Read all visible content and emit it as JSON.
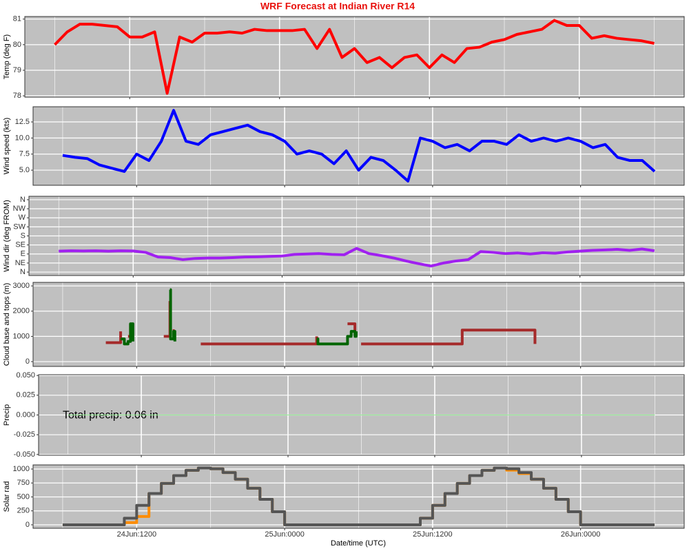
{
  "chart_data": {
    "type": "multi",
    "title": "WRF Forecast at Indian River R14",
    "xlabel": "Date/time (UTC)",
    "xlim": [
      3.6,
      56.4
    ],
    "xticks": [
      {
        "value": 12,
        "label": "24Jun:1200"
      },
      {
        "value": 24,
        "label": "25Jun:0000"
      },
      {
        "value": 36,
        "label": "25Jun:1200"
      },
      {
        "value": 48,
        "label": "26Jun:0000"
      }
    ],
    "xminor": [
      6,
      18,
      30,
      42,
      54
    ],
    "panels": [
      {
        "type": "line",
        "ylabel": "Temp (deg F)",
        "ylim": [
          77.95,
          81.1
        ],
        "yticks": [
          78,
          79,
          80,
          81
        ],
        "x": [
          6,
          7,
          8,
          9,
          10,
          11,
          12,
          13,
          14,
          15,
          16,
          17,
          18,
          19,
          20,
          21,
          22,
          23,
          24,
          25,
          26,
          27,
          28,
          29,
          30,
          31,
          32,
          33,
          34,
          35,
          36,
          37,
          38,
          39,
          40,
          41,
          42,
          43,
          44,
          45,
          46,
          47,
          48,
          49,
          50,
          51,
          52,
          53,
          54
        ],
        "series": [
          {
            "color": "#ff0000",
            "values": [
              80.0,
              80.5,
              80.8,
              80.8,
              80.75,
              80.7,
              80.3,
              80.3,
              80.5,
              78.1,
              80.3,
              80.1,
              80.45,
              80.45,
              80.5,
              80.45,
              80.6,
              80.55,
              80.55,
              80.55,
              80.6,
              79.85,
              80.6,
              79.5,
              79.85,
              79.3,
              79.5,
              79.1,
              79.5,
              79.6,
              79.1,
              79.6,
              79.3,
              79.85,
              79.9,
              80.1,
              80.2,
              80.4,
              80.5,
              80.6,
              80.95,
              80.75,
              80.75,
              80.25,
              80.35,
              80.25,
              80.2,
              80.15,
              80.05
            ]
          }
        ]
      },
      {
        "type": "line",
        "ylabel": "Wind speed (kts)",
        "ylim": [
          2.65,
          14.86
        ],
        "yticks": [
          {
            "value": 5,
            "label": "5.0"
          },
          {
            "value": 7.5,
            "label": "7.5"
          },
          {
            "value": 10,
            "label": "10.0"
          },
          {
            "value": 12.5,
            "label": "12.5"
          }
        ],
        "x": [
          6,
          7,
          8,
          9,
          10,
          11,
          12,
          13,
          14,
          15,
          16,
          17,
          18,
          19,
          20,
          21,
          22,
          23,
          24,
          25,
          26,
          27,
          28,
          29,
          30,
          31,
          32,
          33,
          34,
          35,
          36,
          37,
          38,
          39,
          40,
          41,
          42,
          43,
          44,
          45,
          46,
          47,
          48,
          49,
          50,
          51,
          52,
          53,
          54
        ],
        "series": [
          {
            "color": "#0000ff",
            "values": [
              7.3,
              7.0,
              6.8,
              5.8,
              5.3,
              4.8,
              7.5,
              6.5,
              9.5,
              14.3,
              9.5,
              9.0,
              10.5,
              11.0,
              11.5,
              12.0,
              11.0,
              10.5,
              9.5,
              7.5,
              8.0,
              7.5,
              6.0,
              8.0,
              5.0,
              7.0,
              6.5,
              5.0,
              3.3,
              10.0,
              9.5,
              8.5,
              9.0,
              8.0,
              9.5,
              9.5,
              9.0,
              10.5,
              9.5,
              10.0,
              9.5,
              10.0,
              9.5,
              8.5,
              9.0,
              7.0,
              6.5,
              6.5,
              4.8
            ]
          }
        ]
      },
      {
        "type": "line",
        "ylabel": "Wind dir (deg FROM)",
        "ylim": [
          -17,
          377
        ],
        "yticks": [
          {
            "value": 0,
            "label": "N"
          },
          {
            "value": 45,
            "label": "NE"
          },
          {
            "value": 90,
            "label": "E"
          },
          {
            "value": 135,
            "label": "SE"
          },
          {
            "value": 180,
            "label": "S"
          },
          {
            "value": 225,
            "label": "SW"
          },
          {
            "value": 270,
            "label": "W"
          },
          {
            "value": 315,
            "label": "NW"
          },
          {
            "value": 360,
            "label": "N"
          }
        ],
        "x": [
          6,
          7,
          8,
          9,
          10,
          11,
          12,
          13,
          14,
          15,
          16,
          17,
          18,
          19,
          20,
          21,
          22,
          23,
          24,
          25,
          26,
          27,
          28,
          29,
          30,
          31,
          32,
          33,
          34,
          35,
          36,
          37,
          38,
          39,
          40,
          41,
          42,
          43,
          44,
          45,
          46,
          47,
          48,
          49,
          50,
          51,
          52,
          53,
          54
        ],
        "series": [
          {
            "color": "#a020f0",
            "values": [
              104,
              106,
              105,
              106,
              104,
              106,
              105,
              98,
              75,
              72,
              62,
              68,
              70,
              70,
              72,
              75,
              76,
              78,
              80,
              88,
              90,
              92,
              88,
              86,
              118,
              92,
              82,
              70,
              55,
              42,
              30,
              45,
              55,
              62,
              102,
              98,
              92,
              95,
              90,
              96,
              94,
              100,
              104,
              108,
              110,
              113,
              108,
              115,
              106
            ]
          }
        ]
      },
      {
        "type": "step",
        "ylabel": "Cloud base and tops (m)",
        "ylim": [
          -190,
          3140
        ],
        "yticks": [
          0,
          1000,
          2000,
          3000
        ],
        "x": [
          9.5,
          10.5,
          10.7,
          11.0,
          11.3,
          11.5,
          11.7,
          14.2,
          14.7,
          14.75,
          15.0,
          15.1,
          17.2,
          23.2,
          26.6,
          26.7,
          29.1,
          29.4,
          29.7,
          29.8,
          30.2,
          35.2,
          38.4,
          44.3
        ],
        "series": [
          {
            "color": "#a52a2a",
            "values": [
              750,
              750,
              1200,
              null,
              1000,
              1500,
              null,
              1000,
              2400,
              null,
              1200,
              null,
              700,
              700,
              1000,
              null,
              1500,
              1500,
              1200,
              null,
              700,
              700,
              1250,
              700
            ]
          },
          {
            "color": "#006400",
            "values": [
              null,
              null,
              900,
              700,
              800,
              1500,
              800,
              null,
              2850,
              900,
              1200,
              800,
              null,
              null,
              900,
              700,
              1000,
              1200,
              1000,
              1200,
              null,
              null,
              null,
              null
            ]
          }
        ]
      },
      {
        "type": "line",
        "ylabel": "Precip",
        "ylim": [
          -0.051,
          0.051
        ],
        "yticks": [
          {
            "value": -0.05,
            "label": "-0.050"
          },
          {
            "value": -0.025,
            "label": "-0.025"
          },
          {
            "value": 0,
            "label": "0.000"
          },
          {
            "value": 0.025,
            "label": "0.025"
          },
          {
            "value": 0.05,
            "label": "0.050"
          }
        ],
        "annotation": "Total precip: 0.06 in",
        "x": [
          6,
          54
        ],
        "series": [
          {
            "color": "#90ee90",
            "thin": true,
            "values": [
              0,
              0
            ]
          }
        ]
      },
      {
        "type": "step",
        "ylabel": "Solar rad",
        "ylim": [
          -62,
          1074
        ],
        "yticks": [
          0,
          250,
          500,
          750,
          1000
        ],
        "xlabels": true,
        "x": [
          6,
          7,
          8,
          9,
          10,
          11,
          12,
          13,
          14,
          15,
          16,
          17,
          18,
          19,
          20,
          21,
          22,
          23,
          24,
          25,
          26,
          27,
          28,
          29,
          30,
          31,
          32,
          33,
          34,
          35,
          36,
          37,
          38,
          39,
          40,
          41,
          42,
          43,
          44,
          45,
          46,
          47,
          48,
          49,
          50,
          51,
          52,
          53,
          54
        ],
        "series": [
          {
            "color": "#ff8c00",
            "values": [
              0,
              0,
              0,
              0,
              0,
              40,
              150,
              561,
              742,
              883,
              977,
              1018,
              1004,
              937,
              818,
              656,
              457,
              235,
              0,
              0,
              0,
              0,
              0,
              0,
              0,
              0,
              0,
              0,
              0,
              118,
              349,
              561,
              742,
              883,
              977,
              1018,
              980,
              920,
              818,
              656,
              457,
              235,
              0,
              0,
              0,
              0,
              0,
              0,
              0
            ]
          },
          {
            "color": "#555555",
            "values": [
              0,
              0,
              0,
              0,
              0,
              118,
              349,
              561,
              742,
              883,
              977,
              1018,
              1004,
              937,
              818,
              656,
              457,
              235,
              0,
              0,
              0,
              0,
              0,
              0,
              0,
              0,
              0,
              0,
              0,
              118,
              349,
              561,
              742,
              883,
              977,
              1018,
              1004,
              937,
              818,
              656,
              457,
              235,
              0,
              0,
              0,
              0,
              0,
              0,
              0
            ]
          }
        ]
      }
    ]
  }
}
